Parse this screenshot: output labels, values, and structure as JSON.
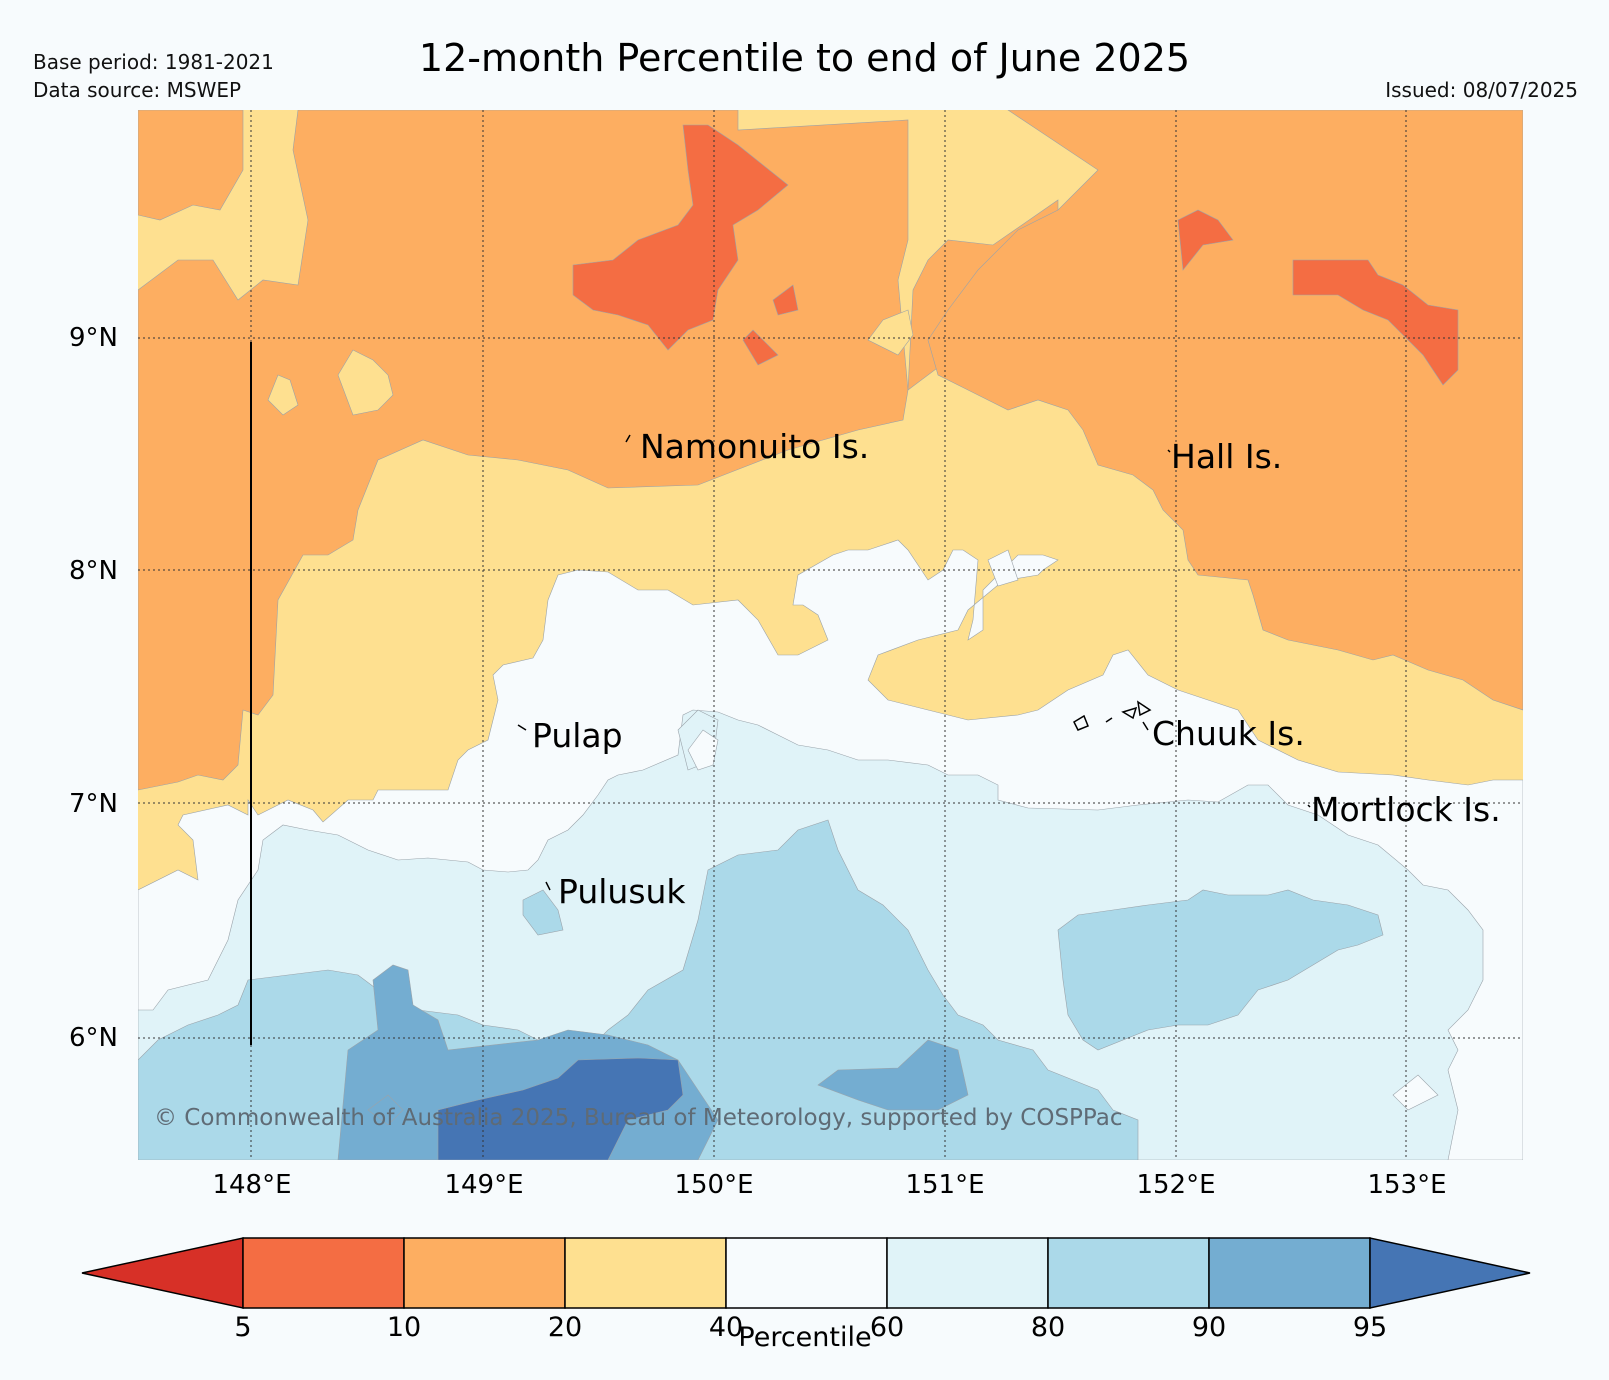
{
  "header": {
    "title": "12-month Percentile to end of June 2025",
    "base_period": "Base period: 1981-2021",
    "data_source": "Data source: MSWEP",
    "issued": "Issued: 08/07/2025"
  },
  "map": {
    "lat_labels": [
      "9°N",
      "8°N",
      "7°N",
      "6°N"
    ],
    "lon_labels": [
      "148°E",
      "149°E",
      "150°E",
      "151°E",
      "152°E",
      "153°E"
    ],
    "places": {
      "namonuito": "Namonuito Is.",
      "hall": "Hall Is.",
      "pulap": "Pulap",
      "chuuk": "Chuuk Is.",
      "mortlock": "Mortlock Is.",
      "pulusuk": "Pulusuk"
    },
    "copyright": "© Commonwealth of Australia 2025, Bureau of Meteorology, supported by COSPPac"
  },
  "legend": {
    "label": "Percentile",
    "ticks": [
      "5",
      "10",
      "20",
      "40",
      "60",
      "80",
      "90",
      "95"
    ],
    "colors": [
      "#d73027",
      "#f46d43",
      "#fdae61",
      "#fee090",
      "#f7fbfd",
      "#e0f3f8",
      "#abd9e9",
      "#74add1",
      "#4575b4"
    ]
  }
}
